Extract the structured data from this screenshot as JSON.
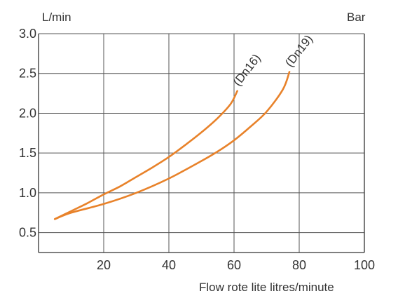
{
  "chart_data": {
    "type": "line",
    "title": "",
    "xlabel": "Flow rote lite litres/minute",
    "ylabel_left": "L/min",
    "ylabel_right": "Bar",
    "xlim": [
      0,
      100
    ],
    "ylim": [
      0.25,
      3.0
    ],
    "x_ticks": [
      "20",
      "40",
      "60",
      "80",
      "100"
    ],
    "y_ticks": [
      "0.5",
      "1.0",
      "1.5",
      "2.0",
      "2.5",
      "3.0"
    ],
    "grid": true,
    "line_color": "#e8822a",
    "series": [
      {
        "name": "(Dn16)",
        "points": [
          [
            5,
            0.67
          ],
          [
            10,
            0.77
          ],
          [
            15,
            0.87
          ],
          [
            20,
            0.98
          ],
          [
            25,
            1.08
          ],
          [
            30,
            1.2
          ],
          [
            35,
            1.32
          ],
          [
            40,
            1.45
          ],
          [
            45,
            1.6
          ],
          [
            50,
            1.76
          ],
          [
            55,
            1.94
          ],
          [
            59,
            2.12
          ],
          [
            61,
            2.28
          ]
        ]
      },
      {
        "name": "(Dn19)",
        "points": [
          [
            5,
            0.67
          ],
          [
            10,
            0.75
          ],
          [
            20,
            0.86
          ],
          [
            30,
            1.0
          ],
          [
            40,
            1.18
          ],
          [
            50,
            1.4
          ],
          [
            55,
            1.52
          ],
          [
            60,
            1.66
          ],
          [
            65,
            1.83
          ],
          [
            70,
            2.02
          ],
          [
            75,
            2.3
          ],
          [
            77,
            2.52
          ]
        ]
      }
    ]
  }
}
